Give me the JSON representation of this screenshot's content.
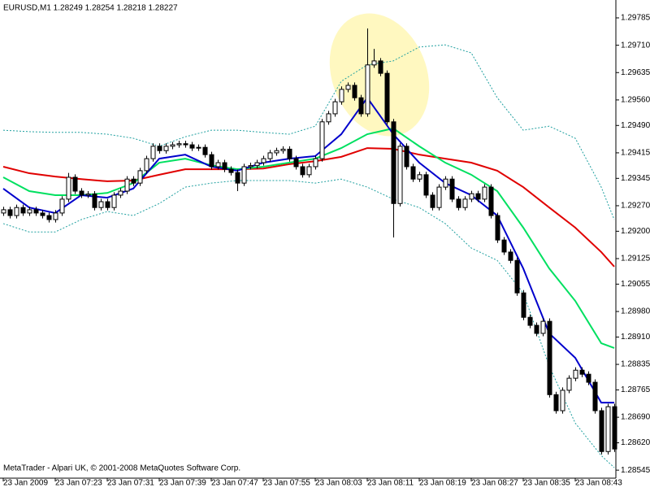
{
  "chart_data": {
    "type": "candlestick",
    "title": "EURUSD,M1  1.28249 1.28254 1.28218 1.28227",
    "copyright": "MetaTrader - Alpari UK, © 2001-2008 MetaQuotes Software Corp.",
    "ylim": [
      1.28523,
      1.29834
    ],
    "yticks": [
      1.29785,
      {
        "value": 1.2971,
        "label": "1.29710"
      },
      1.29635,
      {
        "value": 1.2956,
        "label": "1.29560"
      },
      {
        "value": 1.2949,
        "label": "1.29490"
      },
      1.29415,
      1.29345,
      {
        "value": 1.2927,
        "label": "1.29270"
      },
      {
        "value": 1.292,
        "label": "1.29200"
      },
      1.29125,
      1.29055,
      {
        "value": 1.2898,
        "label": "1.28980"
      },
      {
        "value": 1.2891,
        "label": "1.28910"
      },
      1.28835,
      1.28765,
      {
        "value": 1.2869,
        "label": "1.28690"
      },
      {
        "value": 1.2862,
        "label": "1.28620"
      },
      1.28545
    ],
    "categories": [
      "23 Jan 2009",
      null,
      null,
      null,
      null,
      null,
      null,
      null,
      "23 Jan 07:23",
      null,
      null,
      null,
      null,
      null,
      null,
      null,
      "23 Jan 07:31",
      null,
      null,
      null,
      null,
      null,
      null,
      null,
      "23 Jan 07:39",
      null,
      null,
      null,
      null,
      null,
      null,
      null,
      "23 Jan 07:47",
      null,
      null,
      null,
      null,
      null,
      null,
      null,
      "23 Jan 07:55",
      null,
      null,
      null,
      null,
      null,
      null,
      null,
      "23 Jan 08:03",
      null,
      null,
      null,
      null,
      null,
      null,
      null,
      "23 Jan 08:11",
      null,
      null,
      null,
      null,
      null,
      null,
      null,
      "23 Jan 08:19",
      null,
      null,
      null,
      null,
      null,
      null,
      null,
      "23 Jan 08:27",
      null,
      null,
      null,
      null,
      null,
      null,
      null,
      "23 Jan 08:35",
      null,
      null,
      null,
      null,
      null,
      null,
      null,
      "23 Jan 08:43",
      null,
      null,
      null,
      null,
      null,
      null
    ],
    "up_color": "#ffffff",
    "down_color": "#000000",
    "wick_color": "#000000",
    "open": [
      1.2925,
      1.29259,
      1.29243,
      1.29265,
      1.2925,
      1.29259,
      1.2925,
      1.29243,
      1.29232,
      1.2925,
      1.29288,
      1.29348,
      1.2931,
      1.29299,
      1.29302,
      1.29265,
      1.29281,
      1.29265,
      1.29299,
      1.2931,
      1.29343,
      1.29332,
      1.29366,
      1.29399,
      1.29433,
      1.29421,
      1.29433,
      1.29437,
      1.2944,
      1.29437,
      1.29428,
      1.2943,
      1.2941,
      1.29377,
      1.29388,
      1.2937,
      1.29361,
      1.29332,
      1.29377,
      1.2938,
      1.29388,
      1.29399,
      1.29415,
      1.29421,
      1.29425,
      1.29399,
      1.29377,
      1.29355,
      1.29377,
      1.29399,
      1.295,
      1.29522,
      1.29555,
      1.29589,
      1.296,
      1.29566,
      1.29522,
      1.29656,
      1.29667,
      1.29633,
      1.295,
      1.29276,
      1.29433,
      1.29377,
      1.29343,
      1.29355,
      1.29299,
      1.29265,
      1.29321,
      1.29343,
      1.29288,
      1.29265,
      1.29288,
      1.29303,
      1.29288,
      1.29321,
      1.29243,
      1.29176,
      1.29143,
      1.2912,
      1.29031,
      1.28964,
      1.28942,
      1.2892,
      1.28953,
      1.28752,
      1.28708,
      1.28764,
      1.28797,
      1.28819,
      1.28808,
      1.28786,
      1.28708,
      1.28596,
      1.28719
    ],
    "high": [
      1.29267,
      1.29267,
      1.29273,
      1.29273,
      1.29267,
      1.29267,
      1.29258,
      1.29251,
      1.29258,
      1.29296,
      1.2936,
      1.29356,
      1.29318,
      1.2931,
      1.2931,
      1.29289,
      1.29289,
      1.29307,
      1.29318,
      1.29351,
      1.29351,
      1.29374,
      1.29407,
      1.29441,
      1.29441,
      1.29441,
      1.29445,
      1.29448,
      1.29448,
      1.29445,
      1.29438,
      1.29438,
      1.29418,
      1.29396,
      1.29396,
      1.29378,
      1.29369,
      1.29385,
      1.29388,
      1.29396,
      1.29407,
      1.29423,
      1.29429,
      1.29433,
      1.29433,
      1.29407,
      1.29385,
      1.29385,
      1.29407,
      1.29508,
      1.2953,
      1.29563,
      1.29597,
      1.29608,
      1.29608,
      1.29574,
      1.29756,
      1.297,
      1.29675,
      1.29641,
      1.29508,
      1.29441,
      1.29441,
      1.29385,
      1.29363,
      1.29363,
      1.29307,
      1.29329,
      1.29351,
      1.29351,
      1.29296,
      1.29296,
      1.29311,
      1.29311,
      1.29329,
      1.29329,
      1.29251,
      1.29184,
      1.29151,
      1.29128,
      1.29039,
      1.28972,
      1.2895,
      1.28961,
      1.28961,
      1.2876,
      1.28772,
      1.28805,
      1.28827,
      1.28827,
      1.28816,
      1.28794,
      1.28716,
      1.28727,
      1.28727
    ],
    "low": [
      1.29242,
      1.29235,
      1.29235,
      1.29242,
      1.29242,
      1.29242,
      1.29235,
      1.29224,
      1.29224,
      1.29242,
      1.2928,
      1.29302,
      1.29291,
      1.29291,
      1.29257,
      1.29257,
      1.29257,
      1.29257,
      1.29291,
      1.29302,
      1.29324,
      1.29324,
      1.29358,
      1.29391,
      1.29413,
      1.29413,
      1.29425,
      1.29429,
      1.29429,
      1.2942,
      1.2942,
      1.29402,
      1.29369,
      1.29369,
      1.29362,
      1.29353,
      1.2931,
      1.29324,
      1.29369,
      1.29372,
      1.2938,
      1.29391,
      1.29407,
      1.29413,
      1.29391,
      1.29369,
      1.29347,
      1.29347,
      1.29369,
      1.29391,
      1.29492,
      1.29514,
      1.29547,
      1.29581,
      1.29558,
      1.29514,
      1.29514,
      1.29648,
      1.29625,
      1.29492,
      1.29183,
      1.29268,
      1.29369,
      1.29335,
      1.29335,
      1.29291,
      1.29257,
      1.29257,
      1.29313,
      1.2928,
      1.29257,
      1.29257,
      1.2928,
      1.2928,
      1.2928,
      1.29235,
      1.29168,
      1.29135,
      1.29112,
      1.29023,
      1.28956,
      1.28934,
      1.28912,
      1.28912,
      1.28744,
      1.287,
      1.287,
      1.28756,
      1.28789,
      1.288,
      1.28778,
      1.287,
      1.28588,
      1.28588,
      1.28595
    ],
    "close": [
      1.29259,
      1.29243,
      1.29265,
      1.2925,
      1.29259,
      1.2925,
      1.29243,
      1.29232,
      1.2925,
      1.29288,
      1.29348,
      1.2931,
      1.29299,
      1.29302,
      1.29265,
      1.29281,
      1.29265,
      1.29299,
      1.2931,
      1.29343,
      1.29332,
      1.29366,
      1.29399,
      1.29433,
      1.29421,
      1.29433,
      1.29437,
      1.2944,
      1.29437,
      1.29428,
      1.2943,
      1.2941,
      1.29377,
      1.29388,
      1.2937,
      1.29361,
      1.29332,
      1.29377,
      1.2938,
      1.29388,
      1.29399,
      1.29415,
      1.29421,
      1.29425,
      1.29399,
      1.29377,
      1.29355,
      1.29377,
      1.29399,
      1.295,
      1.29522,
      1.29555,
      1.29589,
      1.296,
      1.29566,
      1.29522,
      1.29656,
      1.29667,
      1.29633,
      1.295,
      1.29276,
      1.29433,
      1.29377,
      1.29343,
      1.29355,
      1.29299,
      1.29265,
      1.29321,
      1.29343,
      1.29288,
      1.29265,
      1.29288,
      1.29303,
      1.29288,
      1.29321,
      1.29243,
      1.29176,
      1.29143,
      1.2912,
      1.29031,
      1.28964,
      1.28942,
      1.2892,
      1.28953,
      1.28752,
      1.28708,
      1.28764,
      1.28797,
      1.28819,
      1.28808,
      1.28786,
      1.28708,
      1.28596,
      1.28719,
      1.28603
    ],
    "x": [
      0,
      4,
      8,
      12,
      16,
      20,
      24,
      28,
      32,
      36,
      40,
      44,
      48,
      52,
      56,
      60,
      64,
      68,
      72,
      76,
      80,
      84,
      88,
      92,
      94
    ],
    "overlays": [
      {
        "color": "#20a0a0",
        "style": "dashed",
        "values": [
          1.29477,
          1.29473,
          1.29471,
          1.29471,
          1.29466,
          1.29455,
          1.29433,
          1.29459,
          1.29477,
          1.29477,
          1.29471,
          1.29466,
          1.29488,
          1.29611,
          1.29656,
          1.29667,
          1.29705,
          1.29711,
          1.29689,
          1.29566,
          1.29477,
          1.29488,
          1.29455,
          1.29321,
          1.29232
        ]
      },
      {
        "color": "#20a0a0",
        "style": "dashed",
        "values": [
          1.29221,
          1.29198,
          1.29198,
          1.29232,
          1.29254,
          1.29243,
          1.29276,
          1.29321,
          1.29332,
          1.29339,
          1.29339,
          1.29339,
          1.29332,
          1.29343,
          1.29321,
          1.29288,
          1.29265,
          1.29221,
          1.29154,
          1.2912,
          1.29031,
          1.2883,
          1.28674,
          1.28585,
          1.28552
        ]
      },
      {
        "color": "#e00000",
        "style": "solid",
        "values": [
          1.29377,
          1.29359,
          1.2935,
          1.29343,
          1.29337,
          1.29339,
          1.29355,
          1.2937,
          1.2937,
          1.2937,
          1.29372,
          1.29384,
          1.29392,
          1.29404,
          1.29428,
          1.29426,
          1.2941,
          1.29399,
          1.29388,
          1.29366,
          1.29321,
          1.29265,
          1.2921,
          1.29143,
          1.29103
        ]
      },
      {
        "color": "#00e060",
        "style": "solid",
        "values": [
          1.29348,
          1.2931,
          1.29299,
          1.29299,
          1.29305,
          1.29332,
          1.29388,
          1.29399,
          1.29381,
          1.2937,
          1.29377,
          1.29388,
          1.29399,
          1.29428,
          1.29466,
          1.29482,
          1.29433,
          1.29388,
          1.29355,
          1.2931,
          1.2921,
          1.29098,
          1.29009,
          1.28893,
          1.2888
        ]
      },
      {
        "color": "#0000cc",
        "style": "solid",
        "values": [
          1.29317,
          1.29265,
          1.2925,
          1.29299,
          1.29292,
          1.29317,
          1.29399,
          1.2941,
          1.29377,
          1.29366,
          1.29388,
          1.29399,
          1.29406,
          1.29466,
          1.29566,
          1.29466,
          1.29388,
          1.29332,
          1.29299,
          1.29243,
          1.29098,
          1.2892,
          1.28853,
          1.2873,
          1.2873
        ]
      }
    ]
  }
}
